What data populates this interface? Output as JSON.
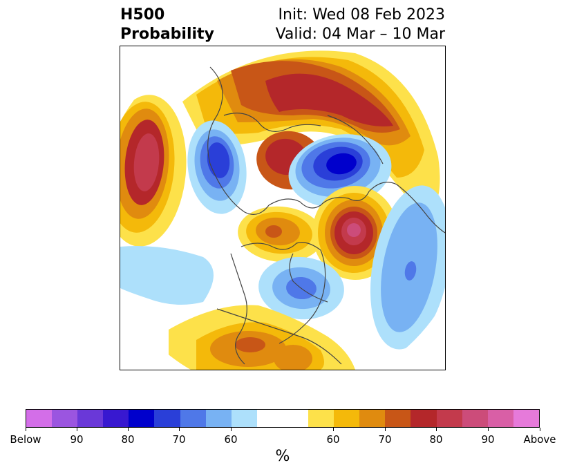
{
  "title": {
    "left_line1": "H500",
    "left_line2": "Probability",
    "right_line1": "Init: Wed 08 Feb 2023",
    "right_line2": "Valid: 04 Mar – 10 Mar"
  },
  "colorbar": {
    "colors": [
      "#d36ee8",
      "#9b55e0",
      "#6a38d8",
      "#3818d0",
      "#0000cc",
      "#2a3fd8",
      "#4f78e8",
      "#78b2f3",
      "#ade0fb",
      "#ffffff",
      "#fde14a",
      "#f4b90a",
      "#e08b0f",
      "#c85617",
      "#b4272a",
      "#c33a4c",
      "#cc4c7a",
      "#d95fa6",
      "#e67ada"
    ],
    "labels": [
      "Below",
      "90",
      "80",
      "70",
      "60",
      "60",
      "70",
      "80",
      "90",
      "Above"
    ],
    "unit": "%"
  },
  "map_colors": {
    "below_light": "#ade0fb",
    "below_mid": "#78b2f3",
    "below_strong": "#4f78e8",
    "below_deep": "#2a3fd8",
    "below_core": "#0000cc",
    "above_light": "#fde14a",
    "above_mid": "#f4b90a",
    "above_orange": "#e08b0f",
    "above_rust": "#c85617",
    "above_red": "#b4272a",
    "above_rose": "#c33a4c",
    "above_pink": "#cc4c7a",
    "coast": "#444444"
  }
}
